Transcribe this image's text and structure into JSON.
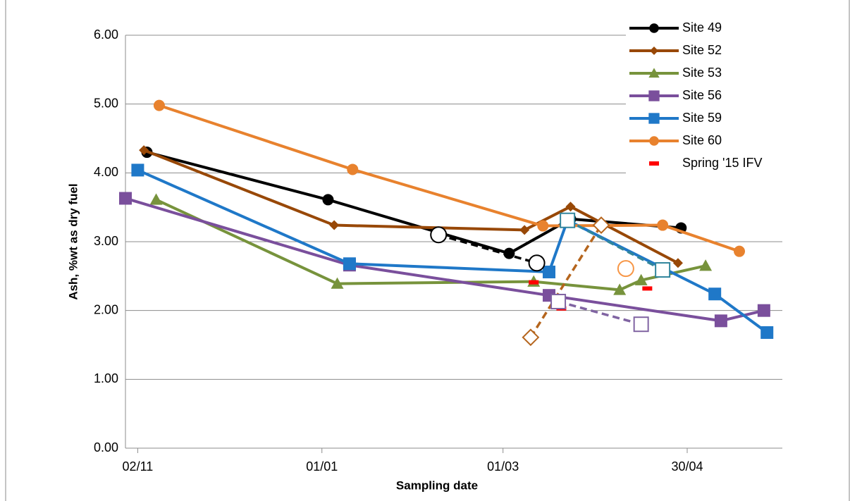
{
  "chart_data": {
    "type": "line",
    "y_label": "Ash, %wt as dry fuel",
    "x_label": "Sampling date",
    "xlim": [
      "29/10",
      "31/05"
    ],
    "xticks": [
      "02/11",
      "01/01",
      "01/03",
      "30/04"
    ],
    "ylim": [
      0,
      6
    ],
    "yticks": [
      {
        "value": 0,
        "label": "0.00"
      },
      {
        "value": 1,
        "label": "1.00"
      },
      {
        "value": 2,
        "label": "2.00"
      },
      {
        "value": 3,
        "label": "3.00"
      },
      {
        "value": 4,
        "label": "4.00"
      },
      {
        "value": 5,
        "label": "5.00"
      },
      {
        "value": 6,
        "label": "6.00"
      }
    ],
    "grid": true,
    "legend": "top-right",
    "series": [
      {
        "name": "Site 49",
        "color": "#000000",
        "marker": "circle",
        "line": true,
        "x": [
          "05/11",
          "03/01",
          "03/03",
          "23/03",
          "28/04"
        ],
        "values": [
          4.3,
          3.61,
          2.83,
          3.33,
          3.2
        ]
      },
      {
        "name": "Site 52",
        "color": "#984807",
        "marker": "diamond",
        "line": true,
        "x": [
          "04/11",
          "05/01",
          "08/03",
          "23/03",
          "27/04"
        ],
        "values": [
          4.33,
          3.24,
          3.17,
          3.51,
          2.69
        ]
      },
      {
        "name": "Site 53",
        "color": "#77933c",
        "marker": "triangle",
        "line": true,
        "x": [
          "08/11",
          "06/01",
          "11/03",
          "08/04",
          "15/04",
          "06/05"
        ],
        "values": [
          3.61,
          2.39,
          2.42,
          2.3,
          2.44,
          2.65
        ]
      },
      {
        "name": "Site 56",
        "color": "#7a4f9c",
        "marker": "square",
        "line": true,
        "x": [
          "29/10",
          "10/01",
          "16/03",
          "11/05",
          "25/05"
        ],
        "values": [
          3.63,
          2.66,
          2.22,
          1.85,
          2.0
        ]
      },
      {
        "name": "Site 59",
        "color": "#1f78c8",
        "marker": "square",
        "line": true,
        "x": [
          "02/11",
          "10/01",
          "16/03",
          "22/03",
          "09/05",
          "26/05"
        ],
        "values": [
          4.04,
          2.68,
          2.56,
          3.31,
          2.24,
          1.68
        ]
      },
      {
        "name": "Site 60",
        "color": "#e8822e",
        "marker": "circle",
        "line": true,
        "x": [
          "09/11",
          "11/01",
          "14/03",
          "22/04",
          "17/05"
        ],
        "values": [
          4.98,
          4.05,
          3.23,
          3.24,
          2.86
        ]
      },
      {
        "name": "Spring '15 IFV",
        "color": "#ff0000",
        "marker": "dash",
        "line": false,
        "x": [
          "11/03",
          "20/03",
          "17/04"
        ],
        "values": [
          2.41,
          2.03,
          2.32
        ]
      },
      {
        "color": "#000000",
        "marker": "circle",
        "line": true,
        "dash": true,
        "hollow": true,
        "x": [
          "08/02",
          "12/03"
        ],
        "values": [
          3.1,
          2.69
        ]
      },
      {
        "color": "#b5651d",
        "marker": "diamond",
        "line": true,
        "dash": true,
        "hollow": true,
        "x": [
          "10/03",
          "02/04"
        ],
        "values": [
          1.61,
          3.24
        ]
      },
      {
        "color": "#31859c",
        "marker": "square",
        "line": true,
        "dash": true,
        "hollow": true,
        "x": [
          "22/03",
          "22/04"
        ],
        "values": [
          3.31,
          2.59
        ]
      },
      {
        "color": "#8064a2",
        "marker": "square",
        "line": true,
        "dash": true,
        "hollow": true,
        "x": [
          "19/03",
          "15/04"
        ],
        "values": [
          2.13,
          1.8
        ]
      },
      {
        "color": "#f79646",
        "marker": "circle",
        "line": false,
        "hollow": true,
        "x": [
          "10/04"
        ],
        "values": [
          2.61
        ]
      }
    ]
  }
}
